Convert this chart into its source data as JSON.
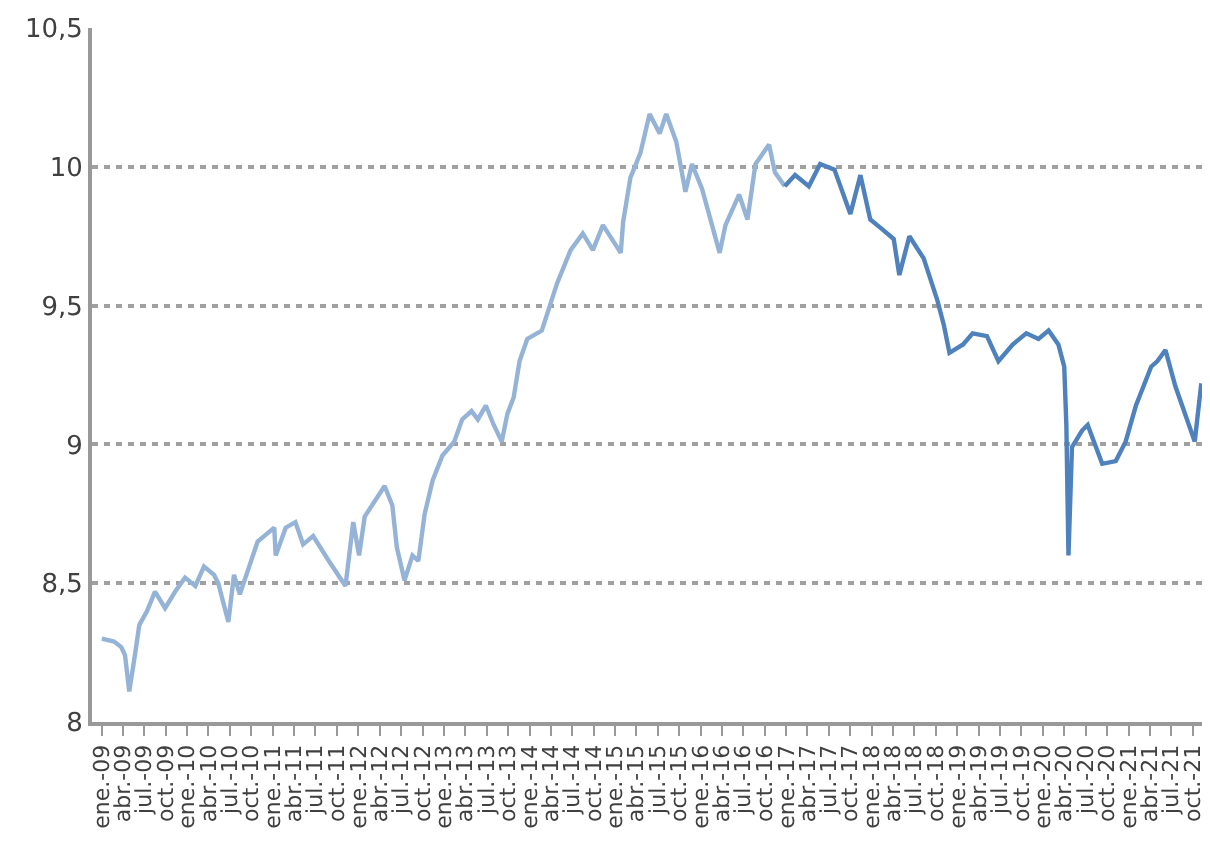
{
  "chart_data": {
    "type": "line",
    "grid": "y",
    "marker": "none",
    "line_style": "solid",
    "ylim": [
      8,
      10.5
    ],
    "yticks": [
      8,
      {
        "value": 8.5,
        "label": "8,5"
      },
      9,
      {
        "value": 9.5,
        "label": "9,5"
      },
      10,
      {
        "value": 10.5,
        "label": "10,5"
      }
    ],
    "xlim": [
      "2008-11-20",
      "2021-11-10"
    ],
    "xticks": [
      {
        "value": "2009-01-01",
        "label": "ene.-09"
      },
      {
        "value": "2009-04-01",
        "label": "abr.-09"
      },
      {
        "value": "2009-07-01",
        "label": "jul.-09"
      },
      {
        "value": "2009-10-01",
        "label": "oct.-09"
      },
      {
        "value": "2010-01-01",
        "label": "ene.-10"
      },
      {
        "value": "2010-04-01",
        "label": "abr.-10"
      },
      {
        "value": "2010-07-01",
        "label": "jul.-10"
      },
      {
        "value": "2010-10-01",
        "label": "oct.-10"
      },
      {
        "value": "2011-01-01",
        "label": "ene.-11"
      },
      {
        "value": "2011-04-01",
        "label": "abr.-11"
      },
      {
        "value": "2011-07-01",
        "label": "jul.-11"
      },
      {
        "value": "2011-10-01",
        "label": "oct.-11"
      },
      {
        "value": "2012-01-01",
        "label": "ene.-12"
      },
      {
        "value": "2012-04-01",
        "label": "abr.-12"
      },
      {
        "value": "2012-07-01",
        "label": "jul.-12"
      },
      {
        "value": "2012-10-01",
        "label": "oct.-12"
      },
      {
        "value": "2013-01-01",
        "label": "ene.-13"
      },
      {
        "value": "2013-04-01",
        "label": "abr.-13"
      },
      {
        "value": "2013-07-01",
        "label": "jul.-13"
      },
      {
        "value": "2013-10-01",
        "label": "oct.-13"
      },
      {
        "value": "2014-01-01",
        "label": "ene.-14"
      },
      {
        "value": "2014-04-01",
        "label": "abr.-14"
      },
      {
        "value": "2014-07-01",
        "label": "jul.-14"
      },
      {
        "value": "2014-10-01",
        "label": "oct.-14"
      },
      {
        "value": "2015-01-01",
        "label": "ene.-15"
      },
      {
        "value": "2015-04-01",
        "label": "abr.-15"
      },
      {
        "value": "2015-07-01",
        "label": "jul.-15"
      },
      {
        "value": "2015-10-01",
        "label": "oct.-15"
      },
      {
        "value": "2016-01-01",
        "label": "ene.-16"
      },
      {
        "value": "2016-04-01",
        "label": "abr.-16"
      },
      {
        "value": "2016-07-01",
        "label": "jul.-16"
      },
      {
        "value": "2016-10-01",
        "label": "oct.-16"
      },
      {
        "value": "2017-01-01",
        "label": "ene.-17"
      },
      {
        "value": "2017-04-01",
        "label": "abr.-17"
      },
      {
        "value": "2017-07-01",
        "label": "jul.-17"
      },
      {
        "value": "2017-10-01",
        "label": "oct.-17"
      },
      {
        "value": "2018-01-01",
        "label": "ene.-18"
      },
      {
        "value": "2018-04-01",
        "label": "abr.-18"
      },
      {
        "value": "2018-07-01",
        "label": "jul.-18"
      },
      {
        "value": "2018-10-01",
        "label": "oct.-18"
      },
      {
        "value": "2019-01-01",
        "label": "ene.-19"
      },
      {
        "value": "2019-04-01",
        "label": "abr.-19"
      },
      {
        "value": "2019-07-01",
        "label": "jul.-19"
      },
      {
        "value": "2019-10-01",
        "label": "oct.-19"
      },
      {
        "value": "2020-01-01",
        "label": "ene.-20"
      },
      {
        "value": "2020-04-01",
        "label": "abr.-20"
      },
      {
        "value": "2020-07-01",
        "label": "jul.-20"
      },
      {
        "value": "2020-10-01",
        "label": "oct.-20"
      },
      {
        "value": "2021-01-01",
        "label": "ene.-21"
      },
      {
        "value": "2021-04-01",
        "label": "abr.-21"
      },
      {
        "value": "2021-07-01",
        "label": "jul.-21"
      },
      {
        "value": "2021-10-01",
        "label": "oct.-21"
      }
    ],
    "series": [
      {
        "color": "#95b3d7",
        "x": [
          "2009-01-01",
          "2009-02-22",
          "2009-03-25",
          "2009-04-10",
          "2009-04-28",
          "2009-05-22",
          "2009-06-10",
          "2009-07-13",
          "2009-08-16",
          "2009-09-28",
          "2009-11-10",
          "2009-12-22",
          "2010-02-04",
          "2010-03-13",
          "2010-04-25",
          "2010-05-13",
          "2010-06-25",
          "2010-07-19",
          "2010-08-13",
          "2010-09-10",
          "2010-10-28",
          "2011-01-07",
          "2011-01-13",
          "2011-02-25",
          "2011-04-07",
          "2011-05-10",
          "2011-06-22",
          "2011-08-28",
          "2011-11-07",
          "2011-12-10",
          "2012-01-04",
          "2012-01-28",
          "2012-04-22",
          "2012-05-25",
          "2012-06-13",
          "2012-07-16",
          "2012-08-19",
          "2012-09-13",
          "2012-10-10",
          "2012-11-13",
          "2012-12-25",
          "2013-02-13",
          "2013-03-19",
          "2013-04-28",
          "2013-05-25",
          "2013-06-28",
          "2013-08-01",
          "2013-09-04",
          "2013-09-28",
          "2013-10-25",
          "2013-11-19",
          "2013-12-22",
          "2014-02-22",
          "2014-04-28",
          "2014-06-25",
          "2014-08-16",
          "2014-09-28",
          "2014-11-10",
          "2015-01-25",
          "2015-02-04",
          "2015-03-07",
          "2015-04-19",
          "2015-05-28",
          "2015-07-10",
          "2015-08-07",
          "2015-09-19",
          "2015-10-28",
          "2015-11-25",
          "2016-01-07",
          "2016-03-22",
          "2016-04-16",
          "2016-06-13",
          "2016-07-19",
          "2016-08-22",
          "2016-10-19",
          "2016-11-13",
          "2016-12-25"
        ],
        "values": [
          8.3,
          8.29,
          8.27,
          8.24,
          8.11,
          8.24,
          8.35,
          8.4,
          8.47,
          8.41,
          8.47,
          8.52,
          8.49,
          8.56,
          8.53,
          8.5,
          8.36,
          8.53,
          8.46,
          8.53,
          8.65,
          8.7,
          8.6,
          8.7,
          8.72,
          8.64,
          8.67,
          8.58,
          8.49,
          8.72,
          8.6,
          8.74,
          8.85,
          8.78,
          8.63,
          8.51,
          8.6,
          8.58,
          8.75,
          8.87,
          8.96,
          9.01,
          9.09,
          9.12,
          9.09,
          9.14,
          9.07,
          9.01,
          9.11,
          9.17,
          9.3,
          9.38,
          9.41,
          9.58,
          9.7,
          9.76,
          9.7,
          9.79,
          9.69,
          9.8,
          9.96,
          10.05,
          10.19,
          10.12,
          10.19,
          10.09,
          9.91,
          10.01,
          9.92,
          9.69,
          9.79,
          9.9,
          9.81,
          10.01,
          10.08,
          9.98,
          9.93
        ]
      },
      {
        "color": "#4f81bd",
        "x": [
          "2016-12-25",
          "2017-02-07",
          "2017-04-07",
          "2017-05-25",
          "2017-07-25",
          "2017-10-01",
          "2017-11-13",
          "2017-12-25",
          "2018-02-07",
          "2018-04-04",
          "2018-04-28",
          "2018-06-10",
          "2018-08-10",
          "2018-10-07",
          "2018-11-04",
          "2018-11-28",
          "2019-01-25",
          "2019-03-07",
          "2019-05-07",
          "2019-06-25",
          "2019-08-25",
          "2019-10-22",
          "2019-12-13",
          "2020-01-25",
          "2020-03-07",
          "2020-04-01",
          "2020-04-10",
          "2020-04-19",
          "2020-05-04",
          "2020-06-16",
          "2020-07-10",
          "2020-09-10",
          "2020-11-07",
          "2020-12-19",
          "2021-02-01",
          "2021-04-07",
          "2021-05-04",
          "2021-06-07",
          "2021-07-19",
          "2021-10-10",
          "2021-11-07"
        ],
        "values": [
          9.93,
          9.97,
          9.93,
          10.01,
          9.99,
          9.83,
          9.97,
          9.81,
          9.78,
          9.74,
          9.61,
          9.75,
          9.67,
          9.52,
          9.43,
          9.33,
          9.36,
          9.4,
          9.39,
          9.3,
          9.36,
          9.4,
          9.38,
          9.41,
          9.36,
          9.28,
          9.07,
          8.6,
          8.99,
          9.05,
          9.07,
          8.93,
          8.94,
          9.01,
          9.14,
          9.28,
          9.3,
          9.34,
          9.21,
          9.01,
          9.22
        ]
      }
    ]
  }
}
